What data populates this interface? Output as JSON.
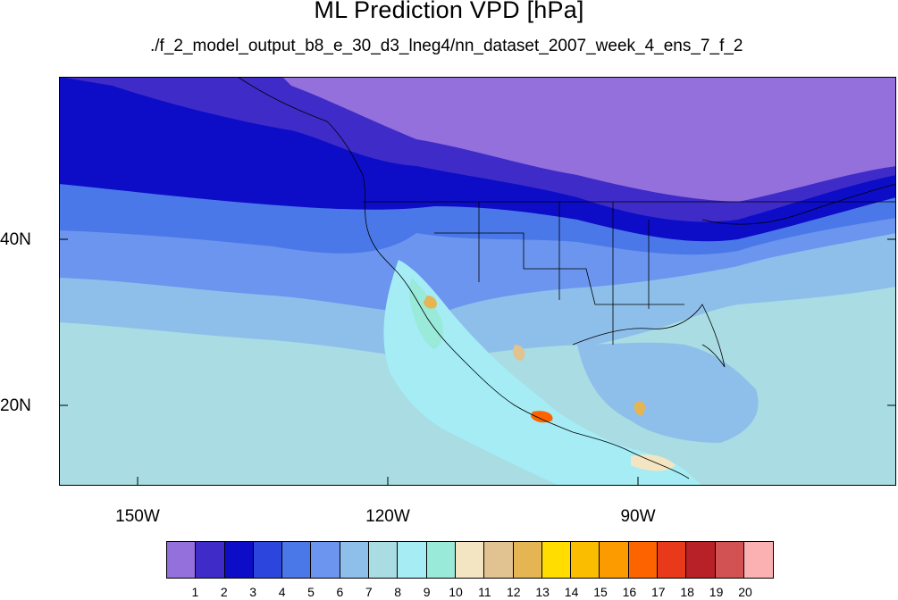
{
  "title": "ML Prediction VPD [hPa]",
  "subtitle": "./f_2_model_output_b8_e_30_d3_lneg4/nn_dataset_2007_week_4_ens_7_f_2",
  "map": {
    "lat_labels": [
      "40N",
      "20N"
    ],
    "lon_labels": [
      "150W",
      "120W",
      "90W"
    ],
    "lon_range": [
      -160,
      -60
    ],
    "lat_range": [
      10,
      59
    ],
    "ocean_color": "#a9dce3",
    "land_color": "#8f6fd9"
  },
  "colorbar": {
    "colors": [
      "#9370db",
      "#3f2bc8",
      "#0d0dc8",
      "#2c46dd",
      "#4a78e8",
      "#6b95ee",
      "#8ebfea",
      "#a9dce3",
      "#a5ecf5",
      "#99ead9",
      "#f4e5c2",
      "#e1c291",
      "#e6b553",
      "#ffdd00",
      "#fbbd00",
      "#fc9b00",
      "#fd6400",
      "#e8391b",
      "#b82127",
      "#d25253",
      "#fbb1b1"
    ],
    "labels": [
      "1",
      "2",
      "3",
      "4",
      "5",
      "6",
      "7",
      "8",
      "9",
      "10",
      "11",
      "12",
      "13",
      "14",
      "15",
      "16",
      "17",
      "18",
      "19",
      "20"
    ]
  }
}
